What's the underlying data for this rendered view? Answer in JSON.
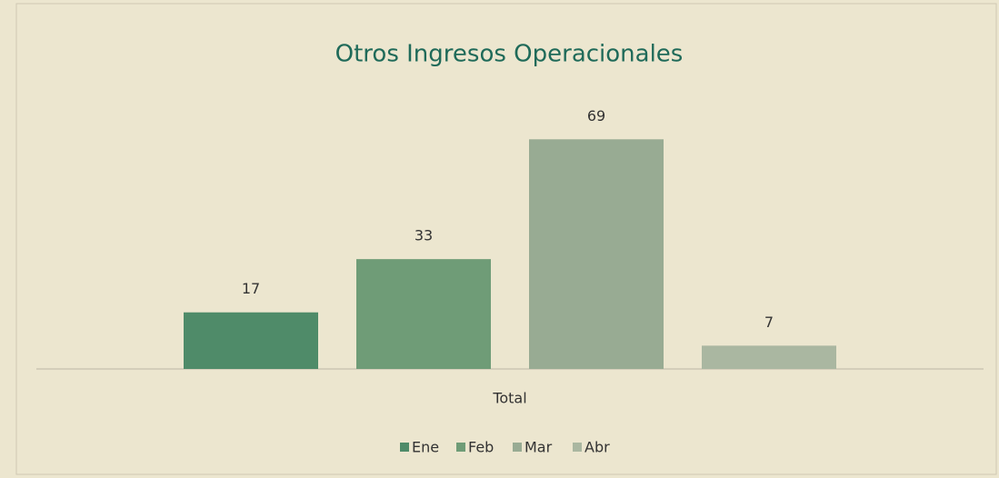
{
  "chart_data": {
    "type": "bar",
    "title": "Otros Ingresos Operacionales",
    "categories": [
      "Total"
    ],
    "series": [
      {
        "name": "Ene",
        "color": "#4f8b69",
        "values": [
          17
        ]
      },
      {
        "name": "Feb",
        "color": "#6f9c77",
        "values": [
          33
        ]
      },
      {
        "name": "Mar",
        "color": "#98ab93",
        "values": [
          69
        ]
      },
      {
        "name": "Abr",
        "color": "#aab7a1",
        "values": [
          7
        ]
      }
    ],
    "ylim": [
      0,
      80
    ],
    "legend": "bottom"
  }
}
